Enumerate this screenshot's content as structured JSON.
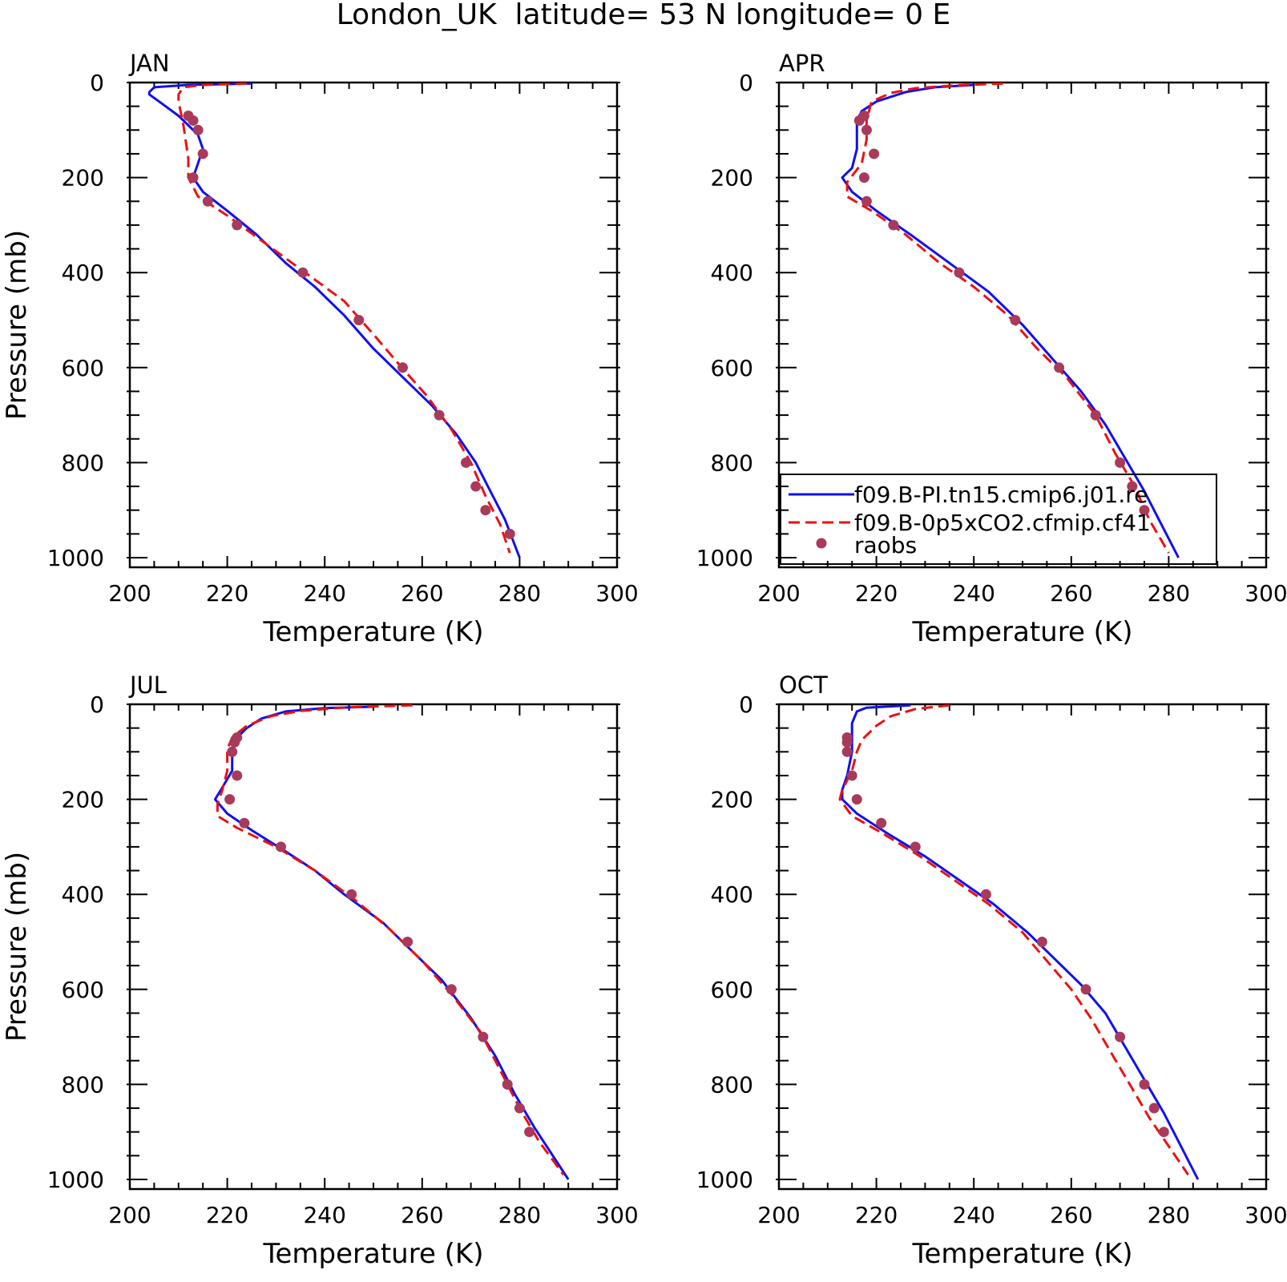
{
  "figure": {
    "title": "London_UK  latitude= 53 N longitude= 0 E",
    "colors": {
      "model_pi": "#1010ee",
      "model_co2": "#ee1010",
      "raobs": "#a83a5a"
    },
    "legend_entries": [
      "f09.B-PI.tn15.cmip6.j01.re",
      "f09.B-0p5xCO2.cfmip.cf41",
      "raobs"
    ]
  },
  "chart_data": [
    {
      "type": "line",
      "panel_label": "JAN",
      "xlabel": "Temperature (K)",
      "ylabel": "Pressure (mb)",
      "xlim": [
        200,
        300
      ],
      "ylim": [
        1000,
        0
      ],
      "y_inverted": true,
      "xticks": [
        "200",
        "220",
        "240",
        "260",
        "280",
        "300"
      ],
      "yticks": [
        "0",
        "200",
        "400",
        "600",
        "800",
        "1000"
      ],
      "series": [
        {
          "name": "f09.B-PI.tn15.cmip6.j01.re",
          "style": "solid",
          "points": [
            [
              225,
              2
            ],
            [
              212,
              5
            ],
            [
              205,
              10
            ],
            [
              204,
              20
            ],
            [
              204,
              25
            ],
            [
              206,
              40
            ],
            [
              210,
              70
            ],
            [
              214,
              110
            ],
            [
              215,
              140
            ],
            [
              214,
              170
            ],
            [
              213,
              200
            ],
            [
              215,
              230
            ],
            [
              220,
              270
            ],
            [
              226,
              320
            ],
            [
              232,
              380
            ],
            [
              238,
              430
            ],
            [
              244,
              490
            ],
            [
              250,
              560
            ],
            [
              256,
              620
            ],
            [
              262,
              680
            ],
            [
              267,
              740
            ],
            [
              271,
              800
            ],
            [
              274,
              860
            ],
            [
              277,
              920
            ],
            [
              280,
              1000
            ]
          ]
        },
        {
          "name": "f09.B-0p5xCO2.cfmip.cf41",
          "style": "dashed",
          "points": [
            [
              224,
              2
            ],
            [
              215,
              5
            ],
            [
              211,
              10
            ],
            [
              210,
              25
            ],
            [
              210,
              40
            ],
            [
              211,
              90
            ],
            [
              212,
              160
            ],
            [
              212,
              200
            ],
            [
              214,
              240
            ],
            [
              220,
              280
            ],
            [
              228,
              340
            ],
            [
              236,
              400
            ],
            [
              244,
              460
            ],
            [
              250,
              530
            ],
            [
              255,
              590
            ],
            [
              261,
              660
            ],
            [
              266,
              730
            ],
            [
              270,
              800
            ],
            [
              273,
              870
            ],
            [
              276,
              930
            ],
            [
              278,
              990
            ]
          ]
        },
        {
          "name": "raobs",
          "style": "markers",
          "points": [
            [
              212,
              70
            ],
            [
              213,
              80
            ],
            [
              214,
              100
            ],
            [
              215,
              150
            ],
            [
              213,
              200
            ],
            [
              216,
              250
            ],
            [
              222,
              300
            ],
            [
              235.5,
              400
            ],
            [
              247,
              500
            ],
            [
              256,
              600
            ],
            [
              263.5,
              700
            ],
            [
              269,
              800
            ],
            [
              271,
              850
            ],
            [
              273,
              900
            ],
            [
              278,
              950
            ]
          ]
        }
      ]
    },
    {
      "type": "line",
      "panel_label": "APR",
      "xlabel": "Temperature (K)",
      "ylabel": "",
      "xlim": [
        200,
        300
      ],
      "ylim": [
        1000,
        0
      ],
      "y_inverted": true,
      "xticks": [
        "200",
        "220",
        "240",
        "260",
        "280",
        "300"
      ],
      "yticks": [
        "0",
        "200",
        "400",
        "600",
        "800",
        "1000"
      ],
      "series": [
        {
          "name": "f09.B-PI.tn15.cmip6.j01.re",
          "style": "solid",
          "points": [
            [
              240,
              5
            ],
            [
              232,
              10
            ],
            [
              226,
              20
            ],
            [
              220,
              40
            ],
            [
              217,
              60
            ],
            [
              216,
              80
            ],
            [
              216,
              100
            ],
            [
              216,
              140
            ],
            [
              215,
              180
            ],
            [
              213,
              200
            ],
            [
              215,
              230
            ],
            [
              220,
              270
            ],
            [
              227,
              320
            ],
            [
              235,
              380
            ],
            [
              243,
              440
            ],
            [
              250,
              510
            ],
            [
              256,
              580
            ],
            [
              262,
              650
            ],
            [
              267,
              720
            ],
            [
              271,
              790
            ],
            [
              275,
              860
            ],
            [
              278,
              920
            ],
            [
              282,
              1000
            ]
          ]
        },
        {
          "name": "f09.B-0p5xCO2.cfmip.cf41",
          "style": "dashed",
          "points": [
            [
              246,
              2
            ],
            [
              236,
              6
            ],
            [
              228,
              12
            ],
            [
              223,
              22
            ],
            [
              219,
              40
            ],
            [
              218,
              80
            ],
            [
              218,
              120
            ],
            [
              217,
              170
            ],
            [
              214,
              210
            ],
            [
              214,
              240
            ],
            [
              219,
              270
            ],
            [
              226,
              320
            ],
            [
              233,
              380
            ],
            [
              240,
              430
            ],
            [
              247,
              490
            ],
            [
              253,
              560
            ],
            [
              259,
              620
            ],
            [
              265,
              700
            ],
            [
              269,
              780
            ],
            [
              273,
              850
            ],
            [
              276,
              920
            ],
            [
              280,
              990
            ]
          ]
        },
        {
          "name": "raobs",
          "style": "markers",
          "points": [
            [
              217.5,
              70
            ],
            [
              216.5,
              80
            ],
            [
              218,
              100
            ],
            [
              219.5,
              150
            ],
            [
              217.5,
              200
            ],
            [
              218,
              250
            ],
            [
              223.5,
              300
            ],
            [
              237,
              400
            ],
            [
              248.5,
              500
            ],
            [
              257.5,
              600
            ],
            [
              265,
              700
            ],
            [
              270,
              800
            ],
            [
              272.5,
              850
            ],
            [
              275,
              900
            ]
          ]
        }
      ]
    },
    {
      "type": "line",
      "panel_label": "JUL",
      "xlabel": "Temperature (K)",
      "ylabel": "Pressure (mb)",
      "xlim": [
        200,
        300
      ],
      "ylim": [
        1000,
        0
      ],
      "y_inverted": true,
      "xticks": [
        "200",
        "220",
        "240",
        "260",
        "280",
        "300"
      ],
      "yticks": [
        "0",
        "200",
        "400",
        "600",
        "800",
        "1000"
      ],
      "series": [
        {
          "name": "f09.B-PI.tn15.cmip6.j01.re",
          "style": "solid",
          "points": [
            [
              250,
              5
            ],
            [
              240,
              8
            ],
            [
              232,
              15
            ],
            [
              227,
              30
            ],
            [
              224,
              50
            ],
            [
              222,
              70
            ],
            [
              221,
              100
            ],
            [
              221,
              140
            ],
            [
              219,
              175
            ],
            [
              217.5,
              200
            ],
            [
              220,
              230
            ],
            [
              225,
              265
            ],
            [
              232,
              310
            ],
            [
              238,
              350
            ],
            [
              244,
              400
            ],
            [
              252,
              460
            ],
            [
              258,
              520
            ],
            [
              264,
              580
            ],
            [
              270,
              660
            ],
            [
              275,
              740
            ],
            [
              279,
              820
            ],
            [
              283,
              890
            ],
            [
              290,
              1000
            ]
          ]
        },
        {
          "name": "f09.B-0p5xCO2.cfmip.cf41",
          "style": "dashed",
          "points": [
            [
              258,
              2
            ],
            [
              245,
              6
            ],
            [
              235,
              14
            ],
            [
              229,
              25
            ],
            [
              224,
              45
            ],
            [
              221,
              70
            ],
            [
              220,
              95
            ],
            [
              220,
              140
            ],
            [
              219,
              180
            ],
            [
              218,
              210
            ],
            [
              218,
              235
            ],
            [
              222,
              260
            ],
            [
              230,
              300
            ],
            [
              238,
              350
            ],
            [
              246,
              410
            ],
            [
              253,
              470
            ],
            [
              260,
              540
            ],
            [
              266,
              610
            ],
            [
              272,
              690
            ],
            [
              276,
              770
            ],
            [
              280,
              850
            ],
            [
              284,
              920
            ],
            [
              289,
              990
            ]
          ]
        },
        {
          "name": "raobs",
          "style": "markers",
          "points": [
            [
              222,
              70
            ],
            [
              221.5,
              80
            ],
            [
              221,
              100
            ],
            [
              222,
              150
            ],
            [
              220.5,
              200
            ],
            [
              223.5,
              250
            ],
            [
              231,
              300
            ],
            [
              245.5,
              400
            ],
            [
              257,
              500
            ],
            [
              266,
              600
            ],
            [
              272.5,
              700
            ],
            [
              277.5,
              800
            ],
            [
              280,
              850
            ],
            [
              282,
              900
            ]
          ]
        }
      ]
    },
    {
      "type": "line",
      "panel_label": "OCT",
      "xlabel": "Temperature (K)",
      "ylabel": "",
      "xlim": [
        200,
        300
      ],
      "ylim": [
        1000,
        0
      ],
      "y_inverted": true,
      "xticks": [
        "200",
        "220",
        "240",
        "260",
        "280",
        "300"
      ],
      "yticks": [
        "0",
        "200",
        "400",
        "600",
        "800",
        "1000"
      ],
      "series": [
        {
          "name": "f09.B-PI.tn15.cmip6.j01.re",
          "style": "solid",
          "points": [
            [
              227,
              2
            ],
            [
              218,
              7
            ],
            [
              216,
              15
            ],
            [
              215,
              40
            ],
            [
              215,
              100
            ],
            [
              214,
              150
            ],
            [
              213,
              180
            ],
            [
              213,
              200
            ],
            [
              216,
              230
            ],
            [
              222,
              270
            ],
            [
              230,
              320
            ],
            [
              237,
              370
            ],
            [
              244,
              420
            ],
            [
              251,
              480
            ],
            [
              257,
              540
            ],
            [
              262,
              590
            ],
            [
              267,
              650
            ],
            [
              271,
              720
            ],
            [
              275,
              790
            ],
            [
              279,
              860
            ],
            [
              282,
              920
            ],
            [
              286,
              1000
            ]
          ]
        },
        {
          "name": "f09.B-0p5xCO2.cfmip.cf41",
          "style": "dashed",
          "points": [
            [
              235,
              2
            ],
            [
              228,
              10
            ],
            [
              223,
              25
            ],
            [
              220,
              45
            ],
            [
              217,
              75
            ],
            [
              216,
              100
            ],
            [
              215,
              140
            ],
            [
              213,
              180
            ],
            [
              212.5,
              200
            ],
            [
              215,
              235
            ],
            [
              221,
              270
            ],
            [
              229,
              320
            ],
            [
              236,
              370
            ],
            [
              243,
              420
            ],
            [
              250,
              480
            ],
            [
              255,
              540
            ],
            [
              260,
              600
            ],
            [
              264,
              660
            ],
            [
              268,
              730
            ],
            [
              272,
              800
            ],
            [
              276,
              870
            ],
            [
              280,
              930
            ],
            [
              284,
              990
            ]
          ]
        },
        {
          "name": "raobs",
          "style": "markers",
          "points": [
            [
              214,
              70
            ],
            [
              214,
              80
            ],
            [
              214,
              100
            ],
            [
              215,
              150
            ],
            [
              216,
              200
            ],
            [
              221,
              250
            ],
            [
              228,
              300
            ],
            [
              242.5,
              400
            ],
            [
              254,
              500
            ],
            [
              263,
              600
            ],
            [
              270,
              700
            ],
            [
              275,
              800
            ],
            [
              277,
              850
            ],
            [
              279,
              900
            ]
          ]
        }
      ]
    }
  ]
}
